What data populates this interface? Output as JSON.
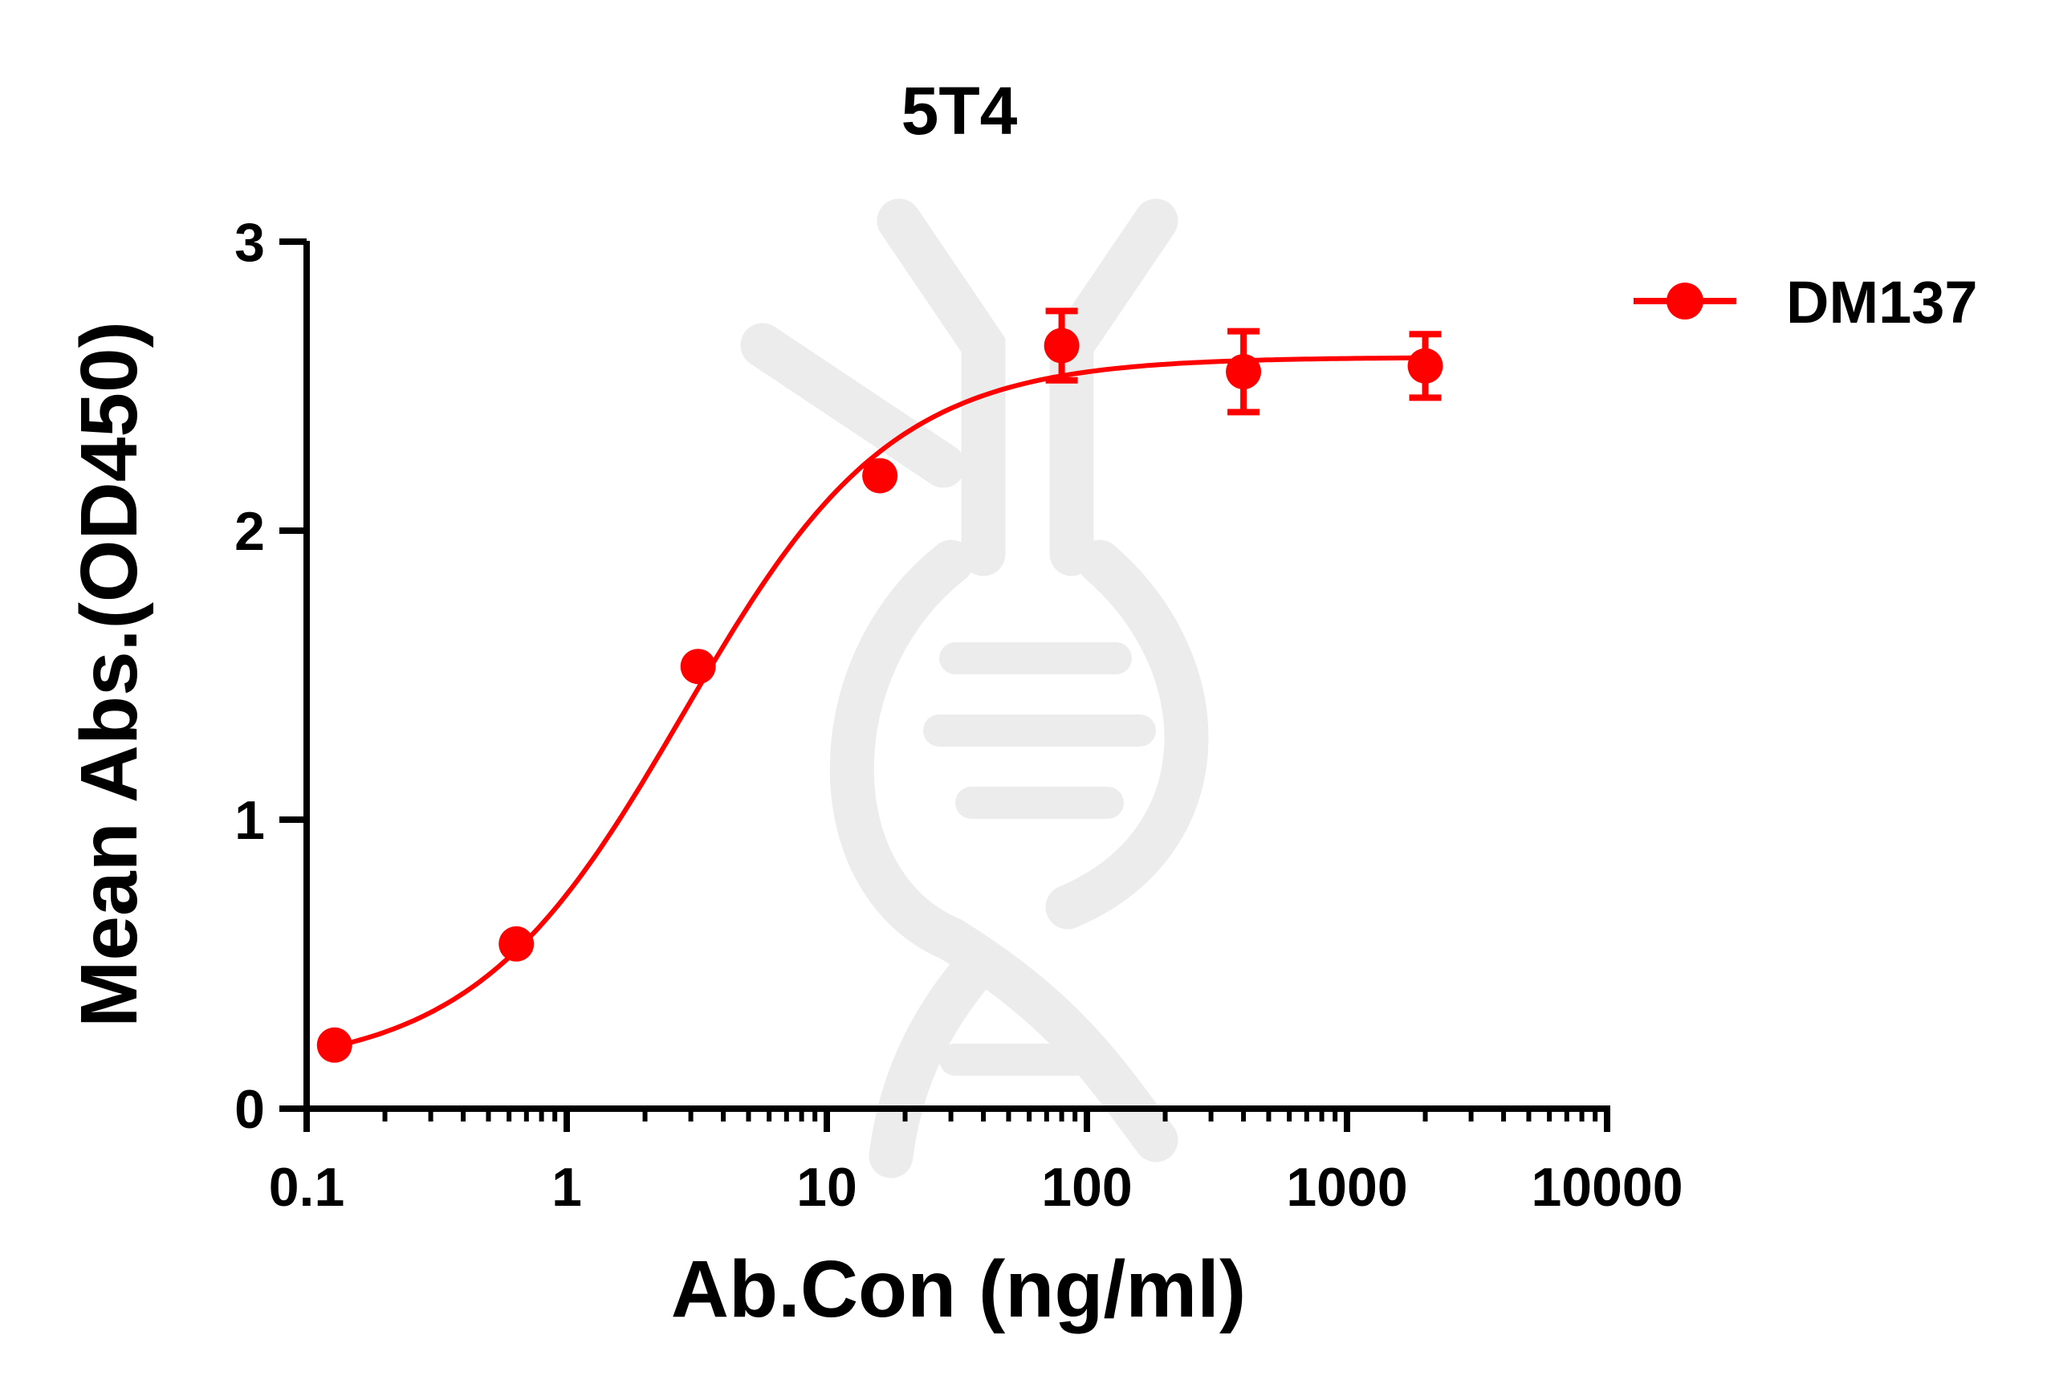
{
  "chart_data": {
    "type": "scatter",
    "title": "5T4",
    "xlabel": "Ab.Con (ng/ml)",
    "ylabel": "Mean Abs.(OD450)",
    "x_scale": "log",
    "xlim": [
      0.1,
      10000
    ],
    "ylim": [
      0,
      3
    ],
    "x_ticks": [
      "0.1",
      "1",
      "10",
      "100",
      "1000",
      "10000"
    ],
    "y_ticks": [
      "0",
      "1",
      "2",
      "3"
    ],
    "grid": false,
    "legend_position": "top-right",
    "fit": "sigmoidal 4PL curve",
    "series": [
      {
        "name": "DM137",
        "color": "#ff0000",
        "points": [
          {
            "x": 0.128,
            "y": 0.22,
            "err": 0
          },
          {
            "x": 0.64,
            "y": 0.57,
            "err": 0
          },
          {
            "x": 3.2,
            "y": 1.53,
            "err": 0
          },
          {
            "x": 16,
            "y": 2.19,
            "err": 0
          },
          {
            "x": 80,
            "y": 2.64,
            "err": 0.12
          },
          {
            "x": 400,
            "y": 2.55,
            "err": 0.14
          },
          {
            "x": 2000,
            "y": 2.57,
            "err": 0.11
          }
        ],
        "fit_params": {
          "bottom": 0.13,
          "top": 2.6,
          "ec50": 2.8,
          "hill": 1.08
        }
      }
    ]
  }
}
